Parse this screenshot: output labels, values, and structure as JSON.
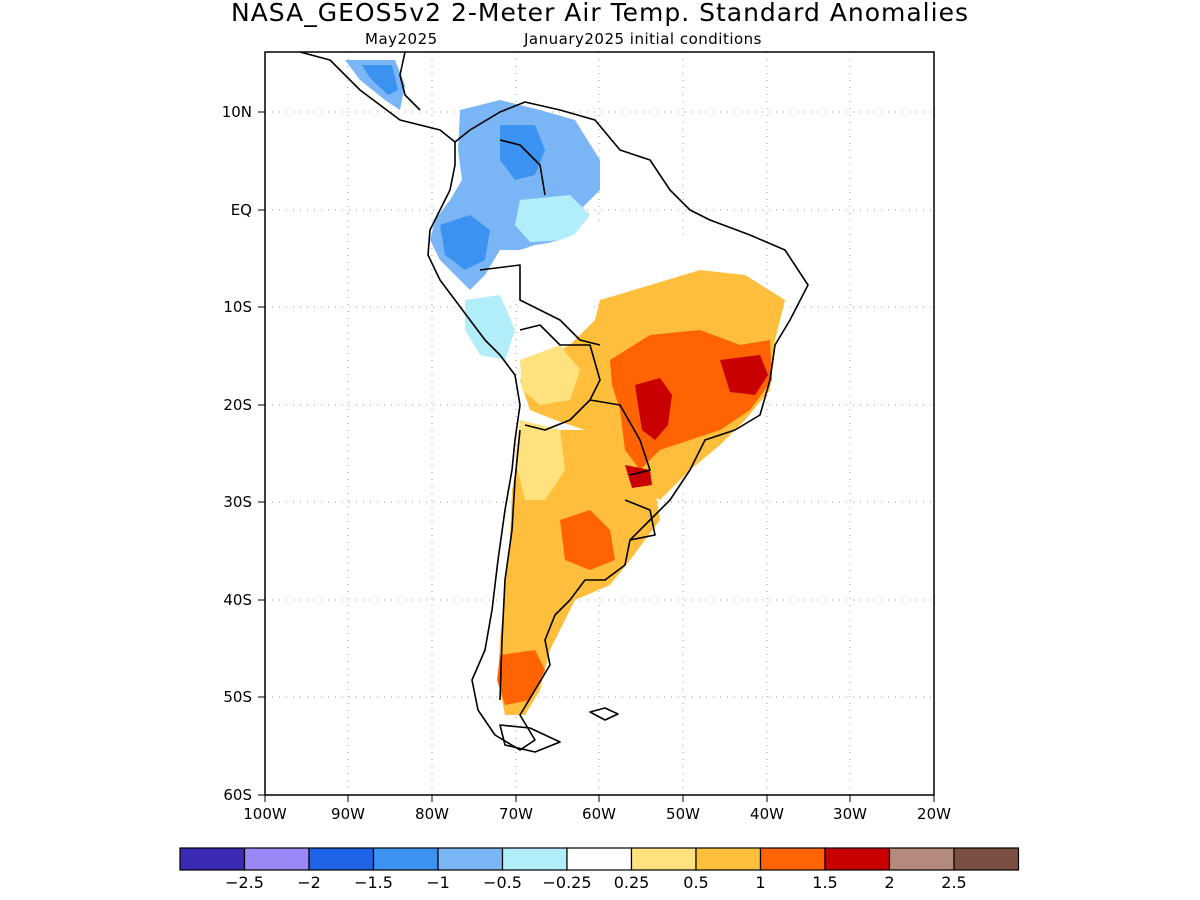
{
  "header": {
    "title": "NASA_GEOS5v2 2-Meter Air Temp. Standard Anomalies",
    "valid_month": "May2025",
    "init_conditions": "January2025 initial conditions"
  },
  "map": {
    "lat_labels": [
      "10N",
      "EQ",
      "10S",
      "20S",
      "30S",
      "40S",
      "50S",
      "60S"
    ],
    "lon_labels": [
      "100W",
      "90W",
      "80W",
      "70W",
      "60W",
      "50W",
      "40W",
      "30W",
      "20W"
    ]
  },
  "colorbar": {
    "colors": [
      "#3b2bb4",
      "#9a87f5",
      "#1f63e6",
      "#3b92f0",
      "#7ab6f6",
      "#b2eefa",
      "#ffffff",
      "#ffe27d",
      "#ffbe3c",
      "#ff6302",
      "#c80000",
      "#b48a7c",
      "#7b4f42"
    ],
    "labels": [
      "-2.5",
      "-2",
      "-1.5",
      "-1",
      "-0.5",
      "-0.25",
      "0.25",
      "0.5",
      "1",
      "1.5",
      "2",
      "2.5"
    ]
  },
  "legend_colors": {
    "very_cold": "#3b2bb4",
    "cold": "#1f63e6",
    "cool": "#7ab6f6",
    "slightly_cool": "#b2eefa",
    "neutral": "#ffffff",
    "slightly_warm": "#ffe27d",
    "warm": "#ffbe3c",
    "hot": "#ff6302",
    "very_hot": "#c80000"
  }
}
